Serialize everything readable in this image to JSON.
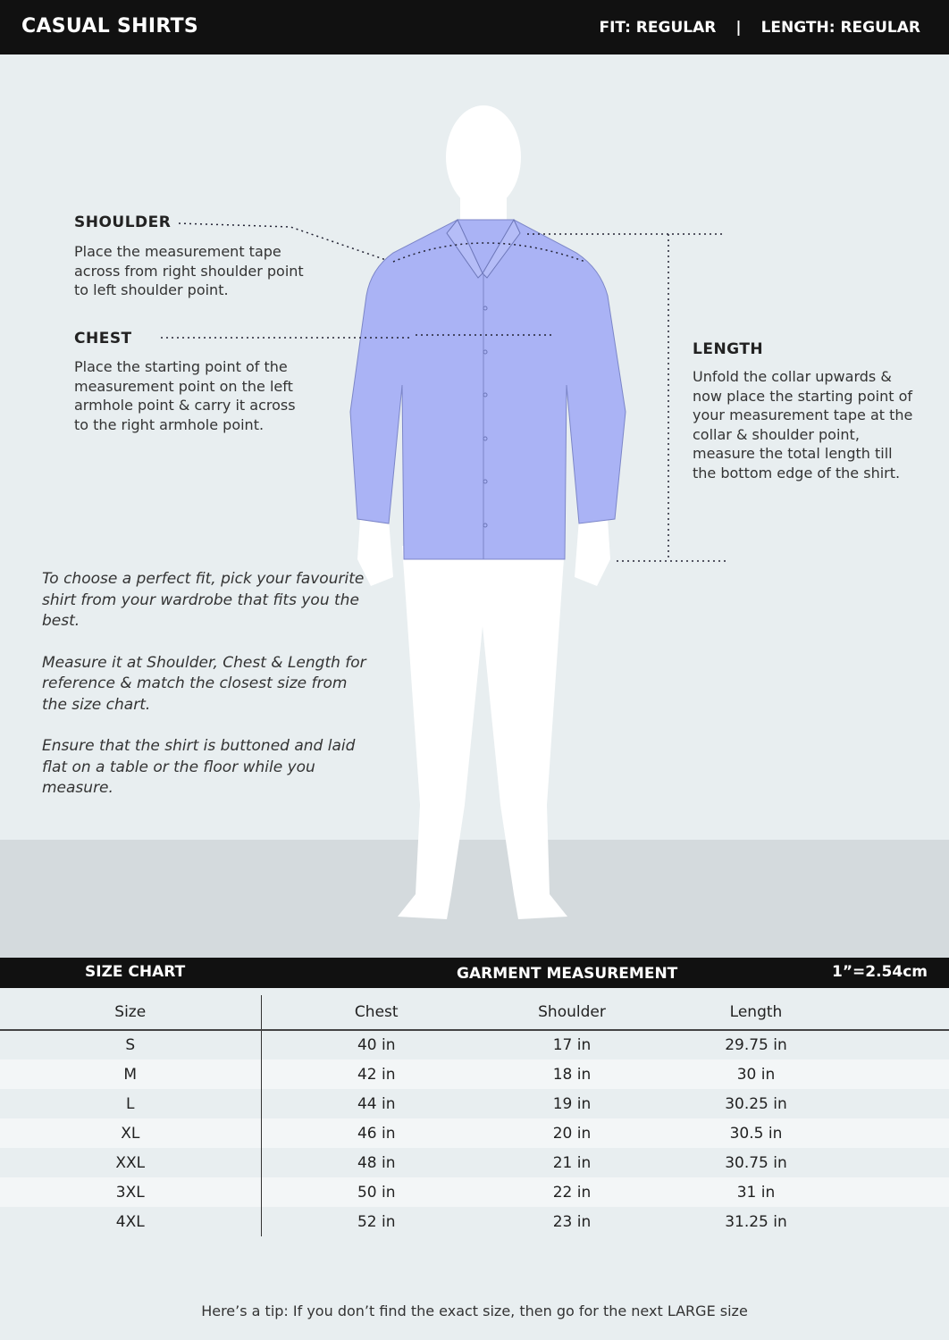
{
  "header": {
    "title": "CASUAL SHIRTS",
    "fit": "FIT: REGULAR",
    "separator": "|",
    "length": "LENGTH: REGULAR"
  },
  "colors": {
    "shirt": "#aab3f5",
    "background": "#e8eef0",
    "bar": "#111111"
  },
  "annotations": {
    "shoulder": {
      "label": "SHOULDER",
      "text": "Place the measurement tape across from right shoulder point to left shoulder point."
    },
    "chest": {
      "label": "CHEST",
      "text": "Place the starting point of the measurement point on the left armhole point & carry it across to the right armhole point."
    },
    "length": {
      "label": "LENGTH",
      "text": "Unfold the collar upwards & now place the starting point of your measurement tape at the collar & shoulder point, measure the total length till the bottom edge of the shirt."
    }
  },
  "tips": [
    "To choose a perfect fit, pick your favourite shirt from your wardrobe that fits you the best.",
    "Measure it at Shoulder, Chest & Length for reference & match the closest size from the size chart.",
    "Ensure that the shirt is buttoned and laid flat on a table or the floor while you measure."
  ],
  "size_chart": {
    "title": "SIZE CHART",
    "subtitle": "GARMENT MEASUREMENT",
    "conversion": "1”=2.54cm",
    "columns": [
      "Size",
      "Chest",
      "Shoulder",
      "Length"
    ],
    "rows": [
      [
        "S",
        "40 in",
        "17 in",
        "29.75 in"
      ],
      [
        "M",
        "42 in",
        "18 in",
        "30 in"
      ],
      [
        "L",
        "44 in",
        "19 in",
        "30.25 in"
      ],
      [
        "XL",
        "46 in",
        "20 in",
        "30.5 in"
      ],
      [
        "XXL",
        "48 in",
        "21 in",
        "30.75 in"
      ],
      [
        "3XL",
        "50 in",
        "22 in",
        "31 in"
      ],
      [
        "4XL",
        "52 in",
        "23 in",
        "31.25 in"
      ]
    ]
  },
  "footer_tip": "Here’s a tip: If you don’t find the exact size, then go for the next LARGE size"
}
